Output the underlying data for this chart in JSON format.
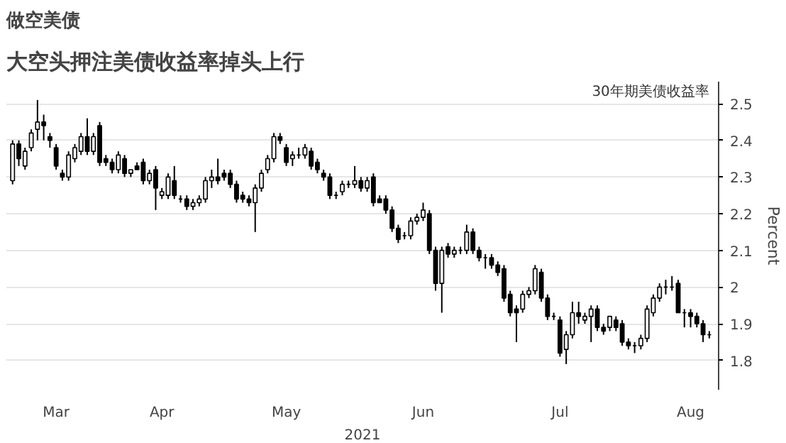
{
  "chart_data": {
    "type": "candlestick",
    "title": "做空美债",
    "subtitle": "大空头押注美债收益率掉头上行",
    "annotations": [
      "30年期美债收益率"
    ],
    "xlabel": "2021",
    "ylabel": "Percent",
    "color": "#000000",
    "grid": "y",
    "ylim": [
      1.72,
      2.56
    ],
    "yticks": [
      1.8,
      1.9,
      2.0,
      2.1,
      2.2,
      2.3,
      2.4,
      2.5
    ],
    "categories": [
      null,
      null,
      null,
      null,
      null,
      null,
      null,
      "Mar",
      null,
      null,
      null,
      null,
      null,
      null,
      null,
      null,
      null,
      null,
      null,
      null,
      null,
      null,
      null,
      null,
      "Apr",
      null,
      null,
      null,
      null,
      null,
      null,
      null,
      null,
      null,
      null,
      null,
      null,
      null,
      null,
      null,
      null,
      null,
      null,
      null,
      "May",
      null,
      null,
      null,
      null,
      null,
      null,
      null,
      null,
      null,
      null,
      null,
      null,
      null,
      null,
      null,
      null,
      null,
      null,
      null,
      null,
      null,
      "Jun",
      null,
      null,
      null,
      null,
      null,
      null,
      null,
      null,
      null,
      null,
      null,
      null,
      null,
      null,
      null,
      null,
      null,
      null,
      null,
      null,
      null,
      "Jul",
      null,
      null,
      null,
      null,
      null,
      null,
      null,
      null,
      null,
      null,
      null,
      null,
      null,
      null,
      null,
      null,
      null,
      null,
      null,
      null,
      "Aug",
      null,
      null,
      null
    ],
    "ohlc": [
      [
        2.29,
        2.4,
        2.28,
        2.39
      ],
      [
        2.39,
        2.4,
        2.33,
        2.35
      ],
      [
        2.33,
        2.38,
        2.32,
        2.37
      ],
      [
        2.38,
        2.43,
        2.37,
        2.42
      ],
      [
        2.43,
        2.51,
        2.4,
        2.45
      ],
      [
        2.45,
        2.47,
        2.4,
        2.44
      ],
      [
        2.41,
        2.42,
        2.38,
        2.4
      ],
      [
        2.38,
        2.39,
        2.32,
        2.33
      ],
      [
        2.31,
        2.32,
        2.29,
        2.3
      ],
      [
        2.3,
        2.37,
        2.29,
        2.36
      ],
      [
        2.35,
        2.39,
        2.34,
        2.38
      ],
      [
        2.37,
        2.42,
        2.36,
        2.41
      ],
      [
        2.41,
        2.46,
        2.36,
        2.37
      ],
      [
        2.37,
        2.42,
        2.36,
        2.41
      ],
      [
        2.44,
        2.45,
        2.33,
        2.34
      ],
      [
        2.35,
        2.36,
        2.33,
        2.34
      ],
      [
        2.34,
        2.35,
        2.31,
        2.32
      ],
      [
        2.32,
        2.37,
        2.31,
        2.36
      ],
      [
        2.35,
        2.36,
        2.3,
        2.31
      ],
      [
        2.31,
        2.32,
        2.3,
        2.32
      ],
      [
        2.33,
        2.34,
        2.32,
        2.32
      ],
      [
        2.34,
        2.35,
        2.28,
        2.29
      ],
      [
        2.29,
        2.32,
        2.28,
        2.31
      ],
      [
        2.32,
        2.33,
        2.21,
        2.27
      ],
      [
        2.25,
        2.27,
        2.24,
        2.26
      ],
      [
        2.25,
        2.31,
        2.24,
        2.3
      ],
      [
        2.29,
        2.33,
        2.24,
        2.25
      ],
      [
        2.24,
        2.25,
        2.23,
        2.24
      ],
      [
        2.24,
        2.25,
        2.21,
        2.22
      ],
      [
        2.22,
        2.24,
        2.21,
        2.23
      ],
      [
        2.23,
        2.25,
        2.22,
        2.24
      ],
      [
        2.24,
        2.3,
        2.23,
        2.29
      ],
      [
        2.29,
        2.32,
        2.27,
        2.3
      ],
      [
        2.3,
        2.35,
        2.28,
        2.29
      ],
      [
        2.31,
        2.32,
        2.29,
        2.3
      ],
      [
        2.31,
        2.32,
        2.27,
        2.28
      ],
      [
        2.28,
        2.29,
        2.23,
        2.24
      ],
      [
        2.25,
        2.26,
        2.23,
        2.24
      ],
      [
        2.24,
        2.25,
        2.22,
        2.23
      ],
      [
        2.23,
        2.28,
        2.15,
        2.27
      ],
      [
        2.27,
        2.32,
        2.26,
        2.31
      ],
      [
        2.32,
        2.36,
        2.31,
        2.35
      ],
      [
        2.35,
        2.42,
        2.34,
        2.41
      ],
      [
        2.41,
        2.42,
        2.39,
        2.4
      ],
      [
        2.38,
        2.39,
        2.33,
        2.34
      ],
      [
        2.35,
        2.37,
        2.33,
        2.36
      ],
      [
        2.36,
        2.38,
        2.35,
        2.36
      ],
      [
        2.36,
        2.39,
        2.35,
        2.38
      ],
      [
        2.37,
        2.38,
        2.32,
        2.33
      ],
      [
        2.34,
        2.35,
        2.31,
        2.32
      ],
      [
        2.31,
        2.32,
        2.29,
        2.3
      ],
      [
        2.3,
        2.31,
        2.24,
        2.25
      ],
      [
        2.25,
        2.26,
        2.24,
        2.25
      ],
      [
        2.26,
        2.29,
        2.25,
        2.28
      ],
      [
        2.28,
        2.29,
        2.27,
        2.28
      ],
      [
        2.28,
        2.33,
        2.27,
        2.29
      ],
      [
        2.29,
        2.3,
        2.26,
        2.27
      ],
      [
        2.27,
        2.3,
        2.26,
        2.29
      ],
      [
        2.3,
        2.31,
        2.22,
        2.23
      ],
      [
        2.24,
        2.25,
        2.23,
        2.23
      ],
      [
        2.24,
        2.25,
        2.2,
        2.21
      ],
      [
        2.21,
        2.22,
        2.15,
        2.16
      ],
      [
        2.16,
        2.17,
        2.12,
        2.13
      ],
      [
        2.14,
        2.15,
        2.13,
        2.14
      ],
      [
        2.14,
        2.19,
        2.13,
        2.18
      ],
      [
        2.18,
        2.2,
        2.17,
        2.19
      ],
      [
        2.19,
        2.23,
        2.18,
        2.21
      ],
      [
        2.2,
        2.21,
        2.09,
        2.1
      ],
      [
        2.1,
        2.11,
        1.99,
        2.01
      ],
      [
        2.01,
        2.11,
        1.93,
        2.1
      ],
      [
        2.11,
        2.12,
        2.08,
        2.09
      ],
      [
        2.09,
        2.11,
        2.08,
        2.1
      ],
      [
        2.1,
        2.11,
        2.09,
        2.1
      ],
      [
        2.1,
        2.17,
        2.09,
        2.15
      ],
      [
        2.15,
        2.16,
        2.09,
        2.1
      ],
      [
        2.1,
        2.11,
        2.07,
        2.08
      ],
      [
        2.08,
        2.09,
        2.05,
        2.08
      ],
      [
        2.08,
        2.09,
        2.05,
        2.06
      ],
      [
        2.06,
        2.07,
        2.03,
        2.04
      ],
      [
        2.05,
        2.06,
        1.96,
        1.97
      ],
      [
        1.98,
        1.99,
        1.92,
        1.93
      ],
      [
        1.94,
        1.95,
        1.85,
        1.93
      ],
      [
        1.94,
        1.99,
        1.93,
        1.98
      ],
      [
        1.98,
        2.0,
        1.97,
        1.99
      ],
      [
        1.99,
        2.06,
        1.98,
        2.05
      ],
      [
        2.04,
        2.05,
        1.96,
        1.97
      ],
      [
        1.97,
        1.98,
        1.91,
        1.92
      ],
      [
        1.92,
        1.93,
        1.91,
        1.92
      ],
      [
        1.91,
        1.92,
        1.81,
        1.82
      ],
      [
        1.83,
        1.88,
        1.79,
        1.87
      ],
      [
        1.87,
        1.96,
        1.86,
        1.93
      ],
      [
        1.93,
        1.96,
        1.9,
        1.92
      ],
      [
        1.91,
        1.93,
        1.9,
        1.92
      ],
      [
        1.92,
        1.95,
        1.85,
        1.94
      ],
      [
        1.94,
        1.95,
        1.88,
        1.89
      ],
      [
        1.89,
        1.9,
        1.87,
        1.88
      ],
      [
        1.89,
        1.92,
        1.88,
        1.92
      ],
      [
        1.91,
        1.92,
        1.88,
        1.89
      ],
      [
        1.9,
        1.91,
        1.84,
        1.85
      ],
      [
        1.85,
        1.86,
        1.83,
        1.84
      ],
      [
        1.84,
        1.85,
        1.82,
        1.84
      ],
      [
        1.84,
        1.87,
        1.83,
        1.86
      ],
      [
        1.86,
        1.95,
        1.85,
        1.94
      ],
      [
        1.93,
        1.98,
        1.92,
        1.97
      ],
      [
        1.97,
        2.01,
        1.96,
        2.0
      ],
      [
        2.0,
        2.02,
        1.98,
        2.0
      ],
      [
        2.0,
        2.03,
        1.99,
        2.0
      ],
      [
        2.01,
        2.02,
        1.93,
        1.93
      ],
      [
        1.93,
        1.94,
        1.89,
        1.93
      ],
      [
        1.93,
        1.94,
        1.89,
        1.92
      ],
      [
        1.92,
        1.93,
        1.89,
        1.9
      ],
      [
        1.9,
        1.91,
        1.85,
        1.87
      ],
      [
        1.87,
        1.88,
        1.86,
        1.87
      ]
    ]
  }
}
